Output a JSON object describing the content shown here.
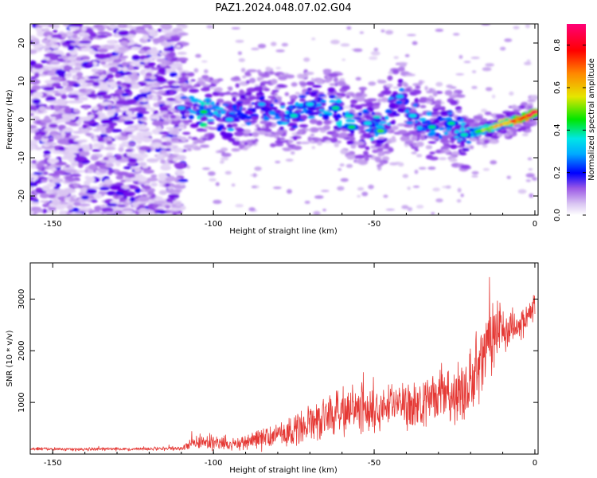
{
  "title": "PAZ1.2024.048.07.02.G04",
  "colors": {
    "snr_line": "#e53935",
    "colormap": [
      "#ffffff",
      "#d9c4f2",
      "#9b59e6",
      "#6a00e8",
      "#0000ff",
      "#00aaff",
      "#00e6e6",
      "#00e600",
      "#e6e600",
      "#ff8800",
      "#ff0000",
      "#ff0077"
    ]
  },
  "chart_data": [
    {
      "type": "heatmap",
      "xlabel": "Height of straight line (km)",
      "ylabel": "Frequency (Hz)",
      "xlim": [
        -157,
        1
      ],
      "ylim": [
        -25,
        25
      ],
      "x_ticks": [
        -150,
        -100,
        -50,
        0
      ],
      "y_ticks": [
        -20,
        -10,
        0,
        10,
        20
      ],
      "colorbar": {
        "label": "Normalized spectral amplitude",
        "range": [
          0,
          0.9
        ],
        "ticks": [
          0.0,
          0.2,
          0.4,
          0.6,
          0.8
        ]
      },
      "ridge": [
        {
          "x": -110,
          "f": 3,
          "amp": 0.3
        },
        {
          "x": -103,
          "f": 2,
          "amp": 0.45
        },
        {
          "x": -95,
          "f": 0,
          "amp": 0.32
        },
        {
          "x": -85,
          "f": 4,
          "amp": 0.3
        },
        {
          "x": -75,
          "f": 1,
          "amp": 0.38
        },
        {
          "x": -70,
          "f": 4,
          "amp": 0.35
        },
        {
          "x": -62,
          "f": 3,
          "amp": 0.4
        },
        {
          "x": -57,
          "f": -2,
          "amp": 0.42
        },
        {
          "x": -52,
          "f": -1,
          "amp": 0.35
        },
        {
          "x": -48,
          "f": -3,
          "amp": 0.48
        },
        {
          "x": -42,
          "f": 6,
          "amp": 0.32
        },
        {
          "x": -38,
          "f": 1,
          "amp": 0.35
        },
        {
          "x": -32,
          "f": -2,
          "amp": 0.4
        },
        {
          "x": -26,
          "f": -1,
          "amp": 0.4
        },
        {
          "x": -22,
          "f": -4,
          "amp": 0.38
        },
        {
          "x": -17,
          "f": -3,
          "amp": 0.5
        },
        {
          "x": -13,
          "f": -2,
          "amp": 0.6
        },
        {
          "x": -9,
          "f": -1,
          "amp": 0.7
        },
        {
          "x": -5,
          "f": 0,
          "amp": 0.78
        },
        {
          "x": -2,
          "f": 1,
          "amp": 0.85
        },
        {
          "x": 0,
          "f": 2,
          "amp": 0.88
        }
      ]
    },
    {
      "type": "line",
      "xlabel": "Height of straight line (km)",
      "ylabel": "SNR (10 * v/v)",
      "xlim": [
        -157,
        1
      ],
      "ylim": [
        0,
        3700
      ],
      "x_ticks": [
        -150,
        -100,
        -50,
        0
      ],
      "y_ticks": [
        1000,
        2000,
        3000
      ],
      "series": [
        {
          "envelope": {
            "x": [
              -157,
              -140,
              -120,
              -110,
              -105,
              -100,
              -95,
              -90,
              -85,
              -80,
              -75,
              -70,
              -65,
              -60,
              -55,
              -50,
              -45,
              -40,
              -35,
              -30,
              -25,
              -20,
              -18,
              -15,
              -12,
              -8,
              -5,
              -3,
              -1,
              0
            ],
            "base": [
              100,
              95,
              100,
              110,
              230,
              220,
              160,
              230,
              290,
              370,
              470,
              600,
              720,
              800,
              820,
              900,
              940,
              940,
              980,
              1050,
              1150,
              1350,
              1600,
              2000,
              2300,
              2450,
              2500,
              2600,
              2700,
              2900
            ],
            "amp": [
              40,
              40,
              40,
              50,
              180,
              200,
              120,
              180,
              250,
              300,
              400,
              450,
              500,
              550,
              550,
              600,
              600,
              600,
              600,
              650,
              700,
              800,
              900,
              1000,
              900,
              500,
              400,
              350,
              400,
              500
            ]
          }
        }
      ]
    }
  ]
}
